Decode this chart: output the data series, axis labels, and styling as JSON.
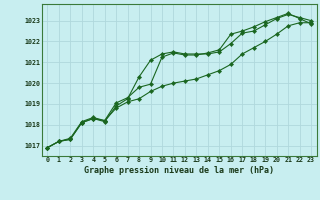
{
  "title": "Graphe pression niveau de la mer (hPa)",
  "bg_color": "#c8eef0",
  "grid_color": "#b0d8dc",
  "line_color": "#1a6620",
  "x_labels": [
    "0",
    "1",
    "2",
    "3",
    "4",
    "5",
    "6",
    "7",
    "8",
    "9",
    "10",
    "11",
    "12",
    "13",
    "14",
    "15",
    "16",
    "17",
    "18",
    "19",
    "20",
    "21",
    "22",
    "23"
  ],
  "ylim": [
    1016.5,
    1023.8
  ],
  "yticks": [
    1017,
    1018,
    1019,
    1020,
    1021,
    1022,
    1023
  ],
  "series1": [
    1016.9,
    1017.2,
    1017.3,
    1018.1,
    1018.3,
    1018.2,
    1018.8,
    1019.1,
    1019.25,
    1019.6,
    1019.85,
    1020.0,
    1020.1,
    1020.2,
    1020.4,
    1020.6,
    1020.9,
    1021.4,
    1021.7,
    1022.0,
    1022.35,
    1022.75,
    1022.9,
    1022.9
  ],
  "series2": [
    1016.9,
    1017.2,
    1017.3,
    1018.1,
    1018.3,
    1018.15,
    1018.9,
    1019.25,
    1020.3,
    1021.1,
    1021.4,
    1021.5,
    1021.4,
    1021.4,
    1021.4,
    1021.5,
    1021.9,
    1022.4,
    1022.5,
    1022.8,
    1023.1,
    1023.3,
    1023.15,
    1023.0
  ],
  "series3": [
    1016.9,
    1017.2,
    1017.35,
    1018.15,
    1018.35,
    1018.2,
    1019.05,
    1019.3,
    1019.8,
    1019.95,
    1021.25,
    1021.45,
    1021.35,
    1021.35,
    1021.45,
    1021.6,
    1022.35,
    1022.5,
    1022.7,
    1022.95,
    1023.15,
    1023.35,
    1023.1,
    1022.85
  ]
}
